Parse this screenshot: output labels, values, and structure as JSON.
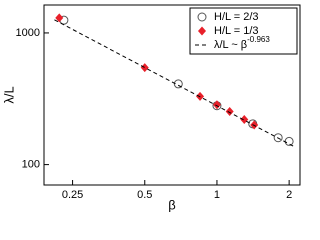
{
  "chart_data": {
    "type": "scatter",
    "x_label": "β",
    "y_label": "λ/L",
    "xscale": "log",
    "yscale": "log",
    "xlim": [
      0.19,
      2.22
    ],
    "ylim": [
      70,
      1630
    ],
    "xticks": [
      0.25,
      0.5,
      1,
      2
    ],
    "yticks": [
      100,
      1000
    ],
    "legend": "upper right",
    "series": [
      {
        "name": "H/L = 2/3",
        "marker": "open-circle",
        "color": "#555555",
        "x": [
          0.23,
          0.69,
          1.0,
          1.41,
          1.8,
          2.0
        ],
        "values": [
          1250,
          410,
          280,
          204,
          160,
          150
        ]
      },
      {
        "name": "H/L = 1/3",
        "marker": "diamond",
        "color": "#e8202a",
        "x": [
          0.22,
          0.5,
          0.85,
          1.0,
          1.13,
          1.3,
          1.43
        ],
        "values": [
          1300,
          545,
          330,
          285,
          253,
          220,
          200
        ]
      },
      {
        "name": "λ/L ~ β",
        "exponent_label": "-0.963",
        "marker": "dashed-line",
        "color": "#000000",
        "x": [
          0.21,
          2.1
        ],
        "values": [
          1258,
          137
        ]
      }
    ]
  }
}
